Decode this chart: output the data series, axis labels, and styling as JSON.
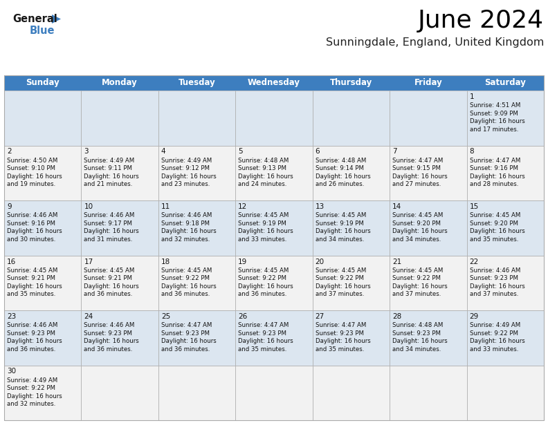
{
  "title": "June 2024",
  "subtitle": "Sunningdale, England, United Kingdom",
  "header_color": "#3d7ebf",
  "header_text_color": "#ffffff",
  "day_headers": [
    "Sunday",
    "Monday",
    "Tuesday",
    "Wednesday",
    "Thursday",
    "Friday",
    "Saturday"
  ],
  "days": [
    {
      "day": 1,
      "col": 6,
      "row": 0,
      "sunrise": "4:51 AM",
      "sunset": "9:09 PM",
      "daylight": "16 hours and 17 minutes."
    },
    {
      "day": 2,
      "col": 0,
      "row": 1,
      "sunrise": "4:50 AM",
      "sunset": "9:10 PM",
      "daylight": "16 hours and 19 minutes."
    },
    {
      "day": 3,
      "col": 1,
      "row": 1,
      "sunrise": "4:49 AM",
      "sunset": "9:11 PM",
      "daylight": "16 hours and 21 minutes."
    },
    {
      "day": 4,
      "col": 2,
      "row": 1,
      "sunrise": "4:49 AM",
      "sunset": "9:12 PM",
      "daylight": "16 hours and 23 minutes."
    },
    {
      "day": 5,
      "col": 3,
      "row": 1,
      "sunrise": "4:48 AM",
      "sunset": "9:13 PM",
      "daylight": "16 hours and 24 minutes."
    },
    {
      "day": 6,
      "col": 4,
      "row": 1,
      "sunrise": "4:48 AM",
      "sunset": "9:14 PM",
      "daylight": "16 hours and 26 minutes."
    },
    {
      "day": 7,
      "col": 5,
      "row": 1,
      "sunrise": "4:47 AM",
      "sunset": "9:15 PM",
      "daylight": "16 hours and 27 minutes."
    },
    {
      "day": 8,
      "col": 6,
      "row": 1,
      "sunrise": "4:47 AM",
      "sunset": "9:16 PM",
      "daylight": "16 hours and 28 minutes."
    },
    {
      "day": 9,
      "col": 0,
      "row": 2,
      "sunrise": "4:46 AM",
      "sunset": "9:16 PM",
      "daylight": "16 hours and 30 minutes."
    },
    {
      "day": 10,
      "col": 1,
      "row": 2,
      "sunrise": "4:46 AM",
      "sunset": "9:17 PM",
      "daylight": "16 hours and 31 minutes."
    },
    {
      "day": 11,
      "col": 2,
      "row": 2,
      "sunrise": "4:46 AM",
      "sunset": "9:18 PM",
      "daylight": "16 hours and 32 minutes."
    },
    {
      "day": 12,
      "col": 3,
      "row": 2,
      "sunrise": "4:45 AM",
      "sunset": "9:19 PM",
      "daylight": "16 hours and 33 minutes."
    },
    {
      "day": 13,
      "col": 4,
      "row": 2,
      "sunrise": "4:45 AM",
      "sunset": "9:19 PM",
      "daylight": "16 hours and 34 minutes."
    },
    {
      "day": 14,
      "col": 5,
      "row": 2,
      "sunrise": "4:45 AM",
      "sunset": "9:20 PM",
      "daylight": "16 hours and 34 minutes."
    },
    {
      "day": 15,
      "col": 6,
      "row": 2,
      "sunrise": "4:45 AM",
      "sunset": "9:20 PM",
      "daylight": "16 hours and 35 minutes."
    },
    {
      "day": 16,
      "col": 0,
      "row": 3,
      "sunrise": "4:45 AM",
      "sunset": "9:21 PM",
      "daylight": "16 hours and 35 minutes."
    },
    {
      "day": 17,
      "col": 1,
      "row": 3,
      "sunrise": "4:45 AM",
      "sunset": "9:21 PM",
      "daylight": "16 hours and 36 minutes."
    },
    {
      "day": 18,
      "col": 2,
      "row": 3,
      "sunrise": "4:45 AM",
      "sunset": "9:22 PM",
      "daylight": "16 hours and 36 minutes."
    },
    {
      "day": 19,
      "col": 3,
      "row": 3,
      "sunrise": "4:45 AM",
      "sunset": "9:22 PM",
      "daylight": "16 hours and 36 minutes."
    },
    {
      "day": 20,
      "col": 4,
      "row": 3,
      "sunrise": "4:45 AM",
      "sunset": "9:22 PM",
      "daylight": "16 hours and 37 minutes."
    },
    {
      "day": 21,
      "col": 5,
      "row": 3,
      "sunrise": "4:45 AM",
      "sunset": "9:22 PM",
      "daylight": "16 hours and 37 minutes."
    },
    {
      "day": 22,
      "col": 6,
      "row": 3,
      "sunrise": "4:46 AM",
      "sunset": "9:23 PM",
      "daylight": "16 hours and 37 minutes."
    },
    {
      "day": 23,
      "col": 0,
      "row": 4,
      "sunrise": "4:46 AM",
      "sunset": "9:23 PM",
      "daylight": "16 hours and 36 minutes."
    },
    {
      "day": 24,
      "col": 1,
      "row": 4,
      "sunrise": "4:46 AM",
      "sunset": "9:23 PM",
      "daylight": "16 hours and 36 minutes."
    },
    {
      "day": 25,
      "col": 2,
      "row": 4,
      "sunrise": "4:47 AM",
      "sunset": "9:23 PM",
      "daylight": "16 hours and 36 minutes."
    },
    {
      "day": 26,
      "col": 3,
      "row": 4,
      "sunrise": "4:47 AM",
      "sunset": "9:23 PM",
      "daylight": "16 hours and 35 minutes."
    },
    {
      "day": 27,
      "col": 4,
      "row": 4,
      "sunrise": "4:47 AM",
      "sunset": "9:23 PM",
      "daylight": "16 hours and 35 minutes."
    },
    {
      "day": 28,
      "col": 5,
      "row": 4,
      "sunrise": "4:48 AM",
      "sunset": "9:23 PM",
      "daylight": "16 hours and 34 minutes."
    },
    {
      "day": 29,
      "col": 6,
      "row": 4,
      "sunrise": "4:49 AM",
      "sunset": "9:22 PM",
      "daylight": "16 hours and 33 minutes."
    },
    {
      "day": 30,
      "col": 0,
      "row": 5,
      "sunrise": "4:49 AM",
      "sunset": "9:22 PM",
      "daylight": "16 hours and 32 minutes."
    }
  ],
  "num_rows": 6,
  "num_cols": 7,
  "logo_general_color": "#1a1a1a",
  "logo_blue_color": "#3d7ebf",
  "logo_triangle_color": "#3d7ebf",
  "cell_bg_odd": "#dce6f0",
  "cell_bg_even": "#f2f2f2",
  "border_color": "#aaaaaa",
  "text_color": "#111111"
}
